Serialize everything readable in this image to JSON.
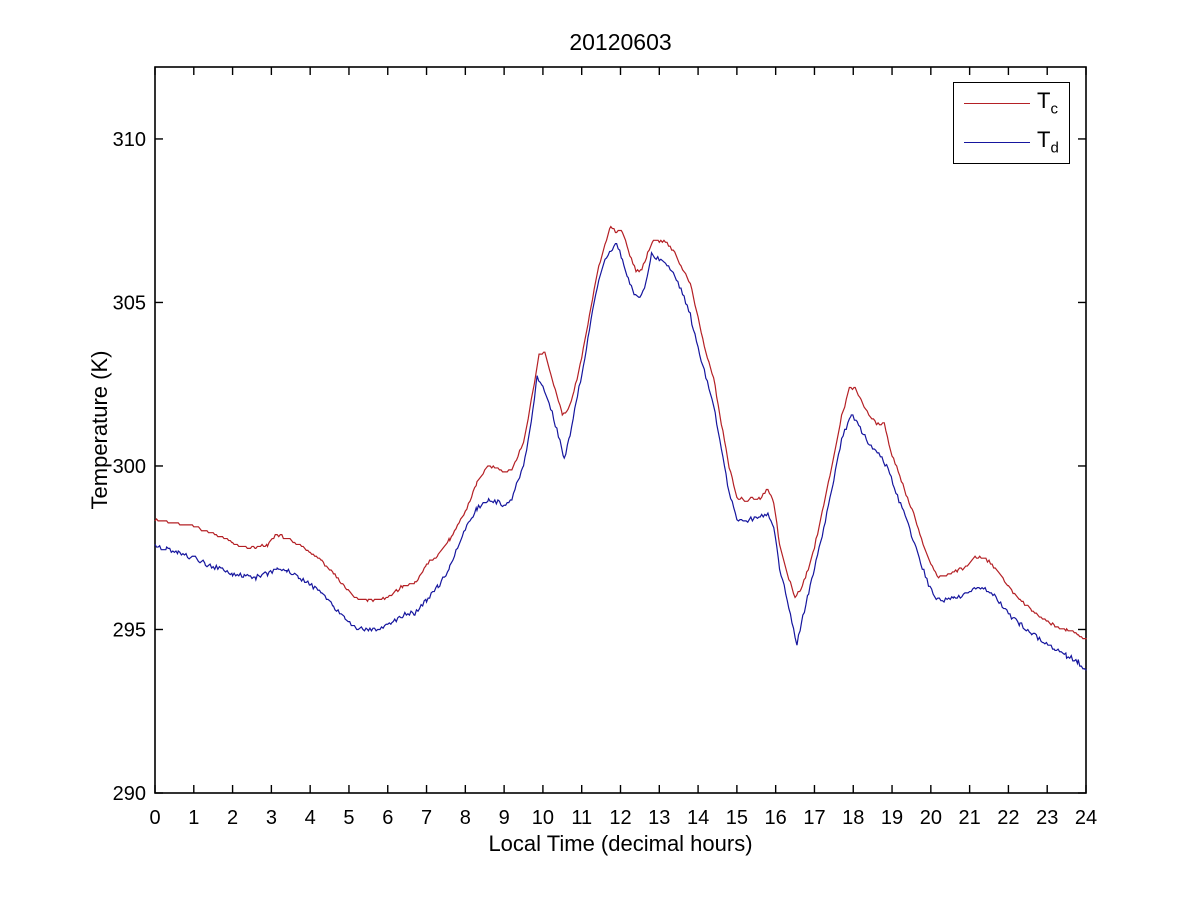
{
  "window": {
    "background": "#ffffff"
  },
  "chart_data": {
    "type": "line",
    "title": "20120603",
    "xlabel": "Local Time (decimal hours)",
    "ylabel": "Temperature (K)",
    "xlim": [
      0,
      24
    ],
    "ylim": [
      290,
      312.2
    ],
    "xticks": [
      0,
      1,
      2,
      3,
      4,
      5,
      6,
      7,
      8,
      9,
      10,
      11,
      12,
      13,
      14,
      15,
      16,
      17,
      18,
      19,
      20,
      21,
      22,
      23,
      24
    ],
    "yticks": [
      290,
      295,
      300,
      305,
      310
    ],
    "grid": false,
    "axis_color": "#000000",
    "legend": {
      "position": "top-right",
      "entries": [
        {
          "main": "T",
          "sub": "c",
          "color": "#b42025"
        },
        {
          "main": "T",
          "sub": "d",
          "color": "#16169e"
        }
      ]
    },
    "series": [
      {
        "name": "T_c",
        "color": "#b42025",
        "noise": 0.035,
        "quantize": 0.06,
        "x": [
          0,
          0.3,
          0.6,
          1,
          1.3,
          1.7,
          2,
          2.3,
          2.6,
          2.9,
          3.15,
          3.4,
          3.7,
          4,
          4.3,
          4.6,
          4.9,
          5.2,
          5.5,
          5.8,
          6.1,
          6.4,
          6.7,
          7,
          7.3,
          7.6,
          8,
          8.3,
          8.6,
          8.8,
          9,
          9.2,
          9.5,
          9.7,
          9.9,
          10.05,
          10.2,
          10.5,
          10.65,
          10.8,
          11,
          11.2,
          11.4,
          11.6,
          11.75,
          11.9,
          12.05,
          12.2,
          12.4,
          12.55,
          12.7,
          12.85,
          13,
          13.2,
          13.4,
          13.6,
          13.8,
          14,
          14.2,
          14.4,
          14.6,
          14.8,
          15,
          15.2,
          15.45,
          15.6,
          15.8,
          15.95,
          16.1,
          16.3,
          16.5,
          16.65,
          16.8,
          17,
          17.2,
          17.5,
          17.7,
          17.9,
          18.05,
          18.2,
          18.4,
          18.6,
          18.8,
          19,
          19.2,
          19.4,
          19.6,
          19.8,
          20,
          20.2,
          20.4,
          20.7,
          20.9,
          21.1,
          21.3,
          21.5,
          21.7,
          22,
          22.3,
          22.6,
          22.9,
          23.2,
          23.5,
          23.8,
          24
        ],
        "values": [
          298.35,
          298.3,
          298.25,
          298.15,
          298.0,
          297.85,
          297.65,
          297.5,
          297.5,
          297.6,
          297.9,
          297.8,
          297.6,
          297.35,
          297.1,
          296.7,
          296.3,
          295.95,
          295.9,
          295.9,
          296.05,
          296.35,
          296.4,
          297.0,
          297.3,
          297.75,
          298.6,
          299.5,
          300.0,
          299.95,
          299.8,
          299.9,
          300.7,
          302.0,
          303.4,
          303.45,
          302.8,
          301.6,
          301.7,
          302.3,
          303.3,
          304.6,
          305.9,
          306.8,
          307.3,
          307.15,
          307.2,
          306.6,
          305.95,
          306.0,
          306.5,
          306.9,
          306.9,
          306.85,
          306.5,
          306.0,
          305.6,
          304.5,
          303.5,
          302.7,
          301.3,
          300.0,
          299.05,
          298.95,
          299.0,
          299.0,
          299.3,
          298.9,
          297.6,
          296.7,
          296.0,
          296.2,
          296.7,
          297.5,
          298.6,
          300.3,
          301.5,
          302.4,
          302.4,
          302.0,
          301.6,
          301.3,
          301.3,
          300.3,
          299.7,
          299.0,
          298.4,
          297.6,
          297.0,
          296.6,
          296.65,
          296.8,
          296.9,
          297.2,
          297.2,
          297.1,
          296.8,
          296.3,
          295.9,
          295.6,
          295.3,
          295.1,
          295.0,
          294.85,
          294.7
        ]
      },
      {
        "name": "T_d",
        "color": "#16169e",
        "noise": 0.07,
        "quantize": 0.04,
        "x": [
          0,
          0.3,
          0.6,
          1,
          1.3,
          1.7,
          2,
          2.3,
          2.6,
          2.9,
          3.15,
          3.4,
          3.7,
          4,
          4.3,
          4.6,
          4.9,
          5.2,
          5.5,
          5.8,
          6.1,
          6.4,
          6.7,
          7,
          7.3,
          7.6,
          8,
          8.3,
          8.6,
          8.8,
          9,
          9.2,
          9.5,
          9.7,
          9.85,
          10,
          10.2,
          10.55,
          10.7,
          10.85,
          11,
          11.2,
          11.4,
          11.6,
          11.75,
          11.9,
          12.05,
          12.2,
          12.35,
          12.5,
          12.65,
          12.8,
          13,
          13.2,
          13.4,
          13.6,
          13.8,
          14,
          14.2,
          14.4,
          14.6,
          14.8,
          15,
          15.2,
          15.45,
          15.6,
          15.8,
          15.95,
          16.1,
          16.3,
          16.55,
          16.7,
          16.85,
          17,
          17.2,
          17.5,
          17.7,
          17.95,
          18.1,
          18.3,
          18.5,
          18.7,
          18.9,
          19.1,
          19.3,
          19.5,
          19.7,
          19.9,
          20.1,
          20.3,
          20.6,
          20.8,
          21,
          21.2,
          21.4,
          21.6,
          21.8,
          22,
          22.3,
          22.6,
          22.9,
          23.2,
          23.5,
          23.8,
          24
        ],
        "values": [
          297.55,
          297.45,
          297.35,
          297.2,
          297.0,
          296.85,
          296.7,
          296.65,
          296.6,
          296.7,
          296.9,
          296.8,
          296.6,
          296.4,
          296.1,
          295.7,
          295.3,
          295.05,
          295.0,
          295.05,
          295.2,
          295.45,
          295.5,
          295.9,
          296.3,
          296.9,
          298.1,
          298.7,
          298.95,
          298.9,
          298.8,
          299.0,
          300.0,
          301.3,
          302.7,
          302.4,
          301.8,
          300.25,
          300.9,
          301.9,
          302.8,
          304.2,
          305.5,
          306.3,
          306.6,
          306.85,
          306.3,
          305.7,
          305.3,
          305.1,
          305.6,
          306.5,
          306.3,
          306.1,
          305.8,
          305.3,
          304.6,
          303.6,
          302.7,
          301.9,
          300.5,
          299.2,
          298.35,
          298.3,
          298.4,
          298.45,
          298.55,
          298.1,
          296.9,
          295.9,
          294.55,
          295.4,
          296.1,
          296.9,
          297.9,
          299.6,
          300.8,
          301.6,
          301.3,
          300.9,
          300.5,
          300.3,
          299.9,
          299.2,
          298.6,
          297.9,
          297.2,
          296.5,
          296.0,
          295.9,
          295.95,
          296.0,
          296.2,
          296.3,
          296.25,
          296.1,
          295.8,
          295.5,
          295.15,
          294.9,
          294.6,
          294.4,
          294.2,
          294.0,
          293.75
        ]
      }
    ]
  }
}
